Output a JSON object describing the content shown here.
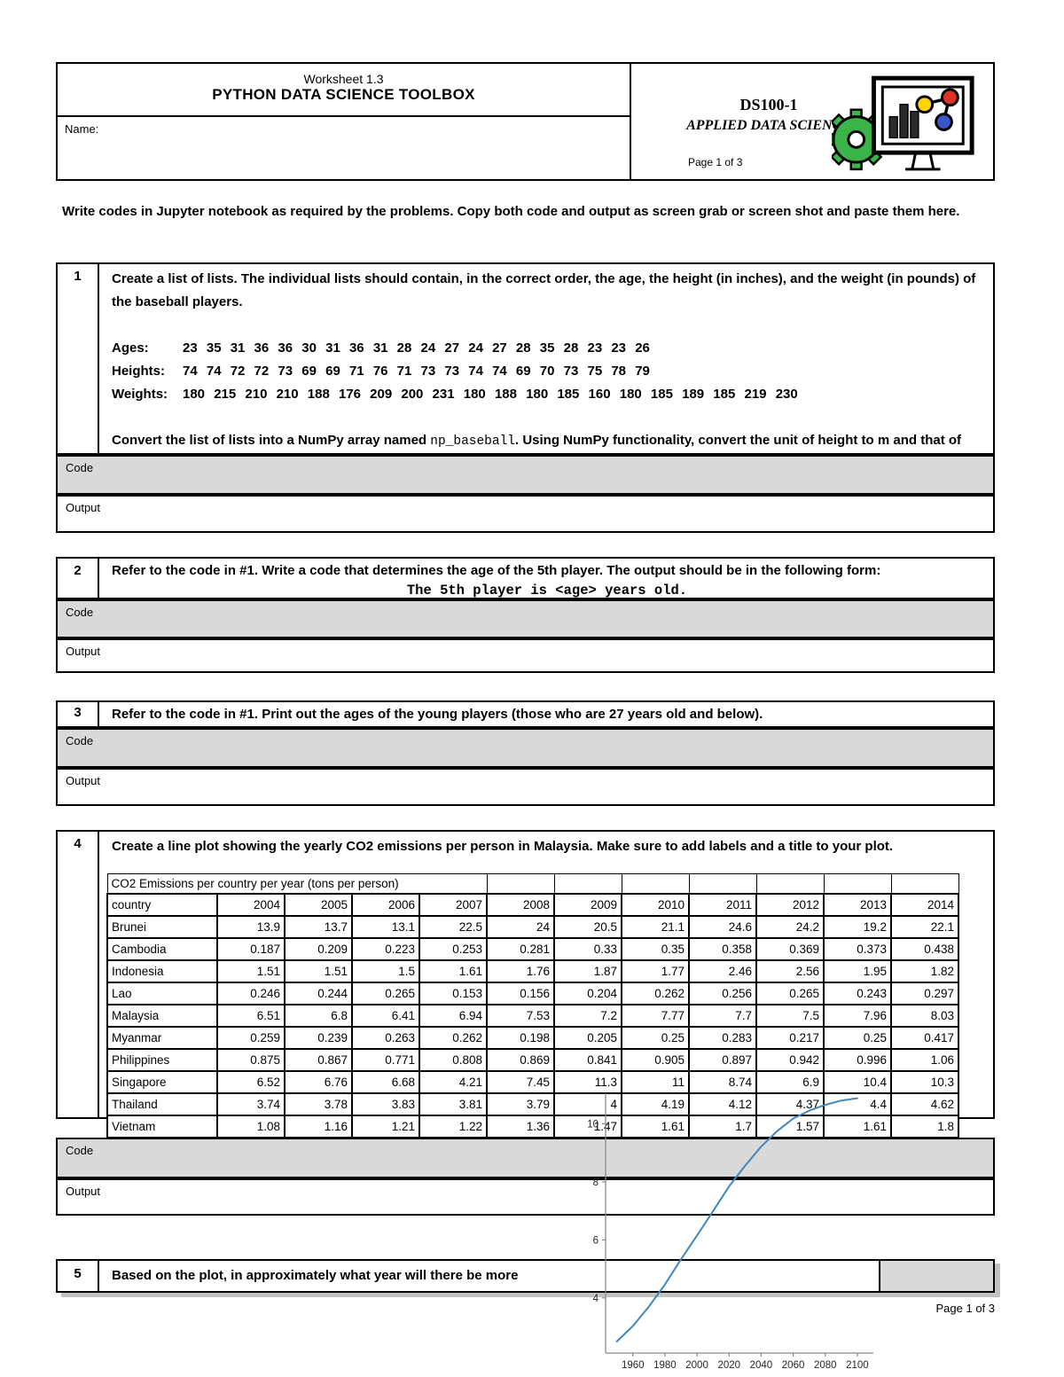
{
  "header": {
    "worksheet": "Worksheet 1.3",
    "title": "PYTHON DATA SCIENCE TOOLBOX",
    "name_label": "Name:",
    "course_code": "DS100-1",
    "course_name": "APPLIED DATA SCIENCE",
    "page_note": "Page 1 of 3"
  },
  "intro": "Write codes in Jupyter notebook as required by the problems. Copy both code and output as screen grab or screen shot and paste them here.",
  "labels": {
    "code": "Code",
    "output": "Output"
  },
  "problems": {
    "p1": {
      "number": "1",
      "text": "Create a list of lists. The individual lists should contain, in the correct order, the age, the height (in inches), and the weight (in pounds) of the baseball players.",
      "ages_label": "Ages:",
      "ages": "23 35 31 36 36 30 31 36 31 28 24 27 24 27 28 35 28 23 23 26",
      "heights_label": "Heights:",
      "heights": "74 74 72 72 73 69 69 71 76 71 73 73 74 74 69 70 73 75 78 79",
      "weights_label": "Weights:",
      "weights": "180 215 210 210 188 176 209 200 231 180 188 180 185 160 180 185 189 185 219 230",
      "convert_pre": "Convert the list of lists into a NumPy array named ",
      "convert_code": "np_baseball",
      "convert_post": ". Using NumPy functionality, convert the unit of height to m and that of weight to kg. Print the resulting array."
    },
    "p2": {
      "number": "2",
      "text": "Refer to the code in #1. Write a code that determines the age of the 5th player. The output should be in the following form:",
      "output_form": "The 5th player is <age> years old."
    },
    "p3": {
      "number": "3",
      "text": "Refer to the code in #1. Print out the ages of the young players (those who are 27 years old and below)."
    },
    "p4": {
      "number": "4",
      "text": "Create a line plot showing the yearly CO2 emissions per person in Malaysia. Make sure to add labels and a title to your plot."
    },
    "p5": {
      "number": "5",
      "text": "Based on the plot, in approximately what year will there be more"
    }
  },
  "co2_table": {
    "title": "CO2 Emissions per country per year (tons per person)",
    "country_header": "country",
    "years": [
      "2004",
      "2005",
      "2006",
      "2007",
      "2008",
      "2009",
      "2010",
      "2011",
      "2012",
      "2013",
      "2014"
    ],
    "rows": [
      {
        "country": "Brunei",
        "values": [
          "13.9",
          "13.7",
          "13.1",
          "22.5",
          "24",
          "20.5",
          "21.1",
          "24.6",
          "24.2",
          "19.2",
          "22.1"
        ]
      },
      {
        "country": "Cambodia",
        "values": [
          "0.187",
          "0.209",
          "0.223",
          "0.253",
          "0.281",
          "0.33",
          "0.35",
          "0.358",
          "0.369",
          "0.373",
          "0.438"
        ]
      },
      {
        "country": "Indonesia",
        "values": [
          "1.51",
          "1.51",
          "1.5",
          "1.61",
          "1.76",
          "1.87",
          "1.77",
          "2.46",
          "2.56",
          "1.95",
          "1.82"
        ]
      },
      {
        "country": "Lao",
        "values": [
          "0.246",
          "0.244",
          "0.265",
          "0.153",
          "0.156",
          "0.204",
          "0.262",
          "0.256",
          "0.265",
          "0.243",
          "0.297"
        ]
      },
      {
        "country": "Malaysia",
        "values": [
          "6.51",
          "6.8",
          "6.41",
          "6.94",
          "7.53",
          "7.2",
          "7.77",
          "7.7",
          "7.5",
          "7.96",
          "8.03"
        ]
      },
      {
        "country": "Myanmar",
        "values": [
          "0.259",
          "0.239",
          "0.263",
          "0.262",
          "0.198",
          "0.205",
          "0.25",
          "0.283",
          "0.217",
          "0.25",
          "0.417"
        ]
      },
      {
        "country": "Philippines",
        "values": [
          "0.875",
          "0.867",
          "0.771",
          "0.808",
          "0.869",
          "0.841",
          "0.905",
          "0.897",
          "0.942",
          "0.996",
          "1.06"
        ]
      },
      {
        "country": "Singapore",
        "values": [
          "6.52",
          "6.76",
          "6.68",
          "4.21",
          "7.45",
          "11.3",
          "11",
          "8.74",
          "6.9",
          "10.4",
          "10.3"
        ]
      },
      {
        "country": "Thailand",
        "values": [
          "3.74",
          "3.78",
          "3.83",
          "3.81",
          "3.79",
          "4",
          "4.19",
          "4.12",
          "4.37",
          "4.4",
          "4.62"
        ]
      },
      {
        "country": "Vietnam",
        "values": [
          "1.08",
          "1.16",
          "1.21",
          "1.22",
          "1.36",
          "1.47",
          "1.61",
          "1.7",
          "1.57",
          "1.61",
          "1.8"
        ]
      }
    ]
  },
  "chart_data": {
    "type": "line",
    "title": "",
    "xlabel": "",
    "ylabel": "",
    "x": [
      1950,
      1960,
      1970,
      1980,
      1990,
      2000,
      2010,
      2020,
      2030,
      2040,
      2050,
      2060,
      2070,
      2080,
      2090,
      2100
    ],
    "y": [
      2.5,
      3.03,
      3.7,
      4.46,
      5.33,
      6.15,
      6.99,
      7.84,
      8.55,
      9.21,
      9.75,
      10.18,
      10.45,
      10.65,
      10.8,
      10.88
    ],
    "x_ticks": [
      "1960",
      "1980",
      "2000",
      "2020",
      "2040",
      "2060",
      "2080",
      "2100"
    ],
    "y_ticks": [
      "4",
      "6",
      "8",
      "10"
    ],
    "xlim": [
      1943,
      2110
    ],
    "ylim": [
      2.1,
      11.05
    ],
    "grid": false,
    "legend": "none",
    "line_color": "#3f87be"
  },
  "footer": {
    "page": "Page 1 of 3"
  },
  "colors": {
    "code_fill": "#d9d9d9",
    "border": "#000000",
    "shadow": "#c2c2c2",
    "logo_green": "#3bb54a",
    "node_yellow": "#ffd400",
    "node_red": "#e03127",
    "node_blue": "#3a57c9"
  }
}
